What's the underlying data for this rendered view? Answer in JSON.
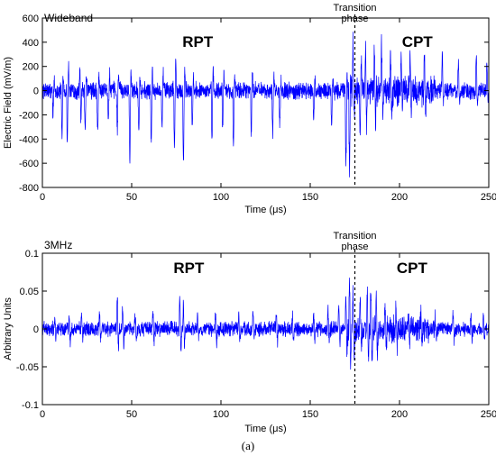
{
  "caption": "(a)",
  "colors": {
    "signal": "#0000ff",
    "axis": "#000000",
    "annotation_line": "#000000"
  },
  "chart_data": [
    {
      "type": "line",
      "band_label": "Wideband",
      "xlabel": "Time (μs)",
      "ylabel": "Electric Field (mV/m)",
      "xlim": [
        0,
        250
      ],
      "ylim": [
        -800,
        600
      ],
      "xticks": [
        0,
        50,
        100,
        150,
        200,
        250
      ],
      "yticks": [
        600,
        400,
        200,
        0,
        -200,
        -400,
        -600,
        -800
      ],
      "grid": false,
      "region_labels": [
        {
          "text": "RPT",
          "x": 87
        },
        {
          "text": "CPT",
          "x": 210
        }
      ],
      "transition": {
        "x": 175,
        "label_line1": "Transition",
        "label_line2": "phase"
      },
      "noise_amplitude": 60,
      "pulses": [
        [
          6,
          -180,
          120
        ],
        [
          11,
          -400,
          230
        ],
        [
          14,
          -430,
          280
        ],
        [
          21,
          220,
          -300
        ],
        [
          24,
          -300,
          200
        ],
        [
          31,
          -380,
          190
        ],
        [
          37,
          -260,
          180
        ],
        [
          42,
          -330,
          220
        ],
        [
          49,
          -560,
          250
        ],
        [
          54,
          -300,
          170
        ],
        [
          61,
          -430,
          230
        ],
        [
          67,
          -310,
          190
        ],
        [
          74,
          -520,
          300
        ],
        [
          79,
          -620,
          250
        ],
        [
          84,
          -280,
          160
        ],
        [
          95,
          -450,
          220
        ],
        [
          101,
          -300,
          180
        ],
        [
          107,
          -480,
          160
        ],
        [
          117,
          -350,
          210
        ],
        [
          129,
          -360,
          160
        ],
        [
          133,
          -300,
          150
        ],
        [
          152,
          -240,
          140
        ],
        [
          162,
          -300,
          150
        ],
        [
          170,
          -600,
          200
        ],
        [
          172,
          -640,
          180
        ],
        [
          174,
          420,
          -300
        ],
        [
          178,
          -380,
          330
        ],
        [
          181,
          330,
          -360
        ],
        [
          186,
          360,
          -310
        ],
        [
          190,
          370,
          -280
        ],
        [
          195,
          300,
          -260
        ],
        [
          201,
          260,
          -190
        ],
        [
          206,
          300,
          -220
        ],
        [
          214,
          260,
          -220
        ],
        [
          224,
          320,
          -180
        ],
        [
          233,
          230,
          -170
        ],
        [
          243,
          250,
          -150
        ],
        [
          249,
          220,
          -150
        ]
      ]
    },
    {
      "type": "line",
      "band_label": "3MHz",
      "xlabel": "Time (μs)",
      "ylabel": "Arbitrary Units",
      "xlim": [
        0,
        250
      ],
      "ylim": [
        -0.1,
        0.1
      ],
      "xticks": [
        0,
        50,
        100,
        150,
        200,
        250
      ],
      "yticks": [
        0.1,
        0.05,
        0,
        -0.05,
        -0.1
      ],
      "grid": false,
      "region_labels": [
        {
          "text": "RPT",
          "x": 82
        },
        {
          "text": "CPT",
          "x": 207
        }
      ],
      "transition": {
        "x": 175,
        "label_line1": "Transition",
        "label_line2": "phase"
      },
      "noise_amplitude": 0.008,
      "pulses": [
        [
          7,
          0.018,
          -0.018
        ],
        [
          15,
          0.015,
          -0.02
        ],
        [
          22,
          0.02,
          -0.015
        ],
        [
          32,
          0.022,
          -0.02
        ],
        [
          42,
          0.045,
          -0.035
        ],
        [
          45,
          0.03,
          -0.025
        ],
        [
          52,
          0.02,
          -0.02
        ],
        [
          62,
          0.022,
          -0.02
        ],
        [
          77,
          0.045,
          -0.036
        ],
        [
          79,
          0.032,
          -0.028
        ],
        [
          87,
          0.02,
          -0.018
        ],
        [
          97,
          0.024,
          -0.02
        ],
        [
          110,
          0.022,
          -0.022
        ],
        [
          118,
          0.02,
          -0.015
        ],
        [
          131,
          0.024,
          -0.02
        ],
        [
          140,
          0.018,
          -0.02
        ],
        [
          152,
          0.02,
          -0.015
        ],
        [
          160,
          0.025,
          -0.02
        ],
        [
          166,
          0.03,
          -0.025
        ],
        [
          170,
          0.045,
          -0.04
        ],
        [
          172,
          0.065,
          -0.05
        ],
        [
          174,
          0.055,
          -0.045
        ],
        [
          178,
          0.045,
          -0.04
        ],
        [
          182,
          0.05,
          -0.052
        ],
        [
          184,
          0.062,
          -0.055
        ],
        [
          187,
          0.04,
          -0.045
        ],
        [
          192,
          0.03,
          -0.035
        ],
        [
          198,
          0.025,
          -0.025
        ],
        [
          205,
          0.018,
          -0.02
        ],
        [
          212,
          0.02,
          -0.02
        ],
        [
          220,
          0.015,
          -0.02
        ],
        [
          230,
          0.02,
          -0.018
        ],
        [
          240,
          0.018,
          -0.015
        ],
        [
          247,
          0.016,
          -0.018
        ]
      ]
    }
  ]
}
